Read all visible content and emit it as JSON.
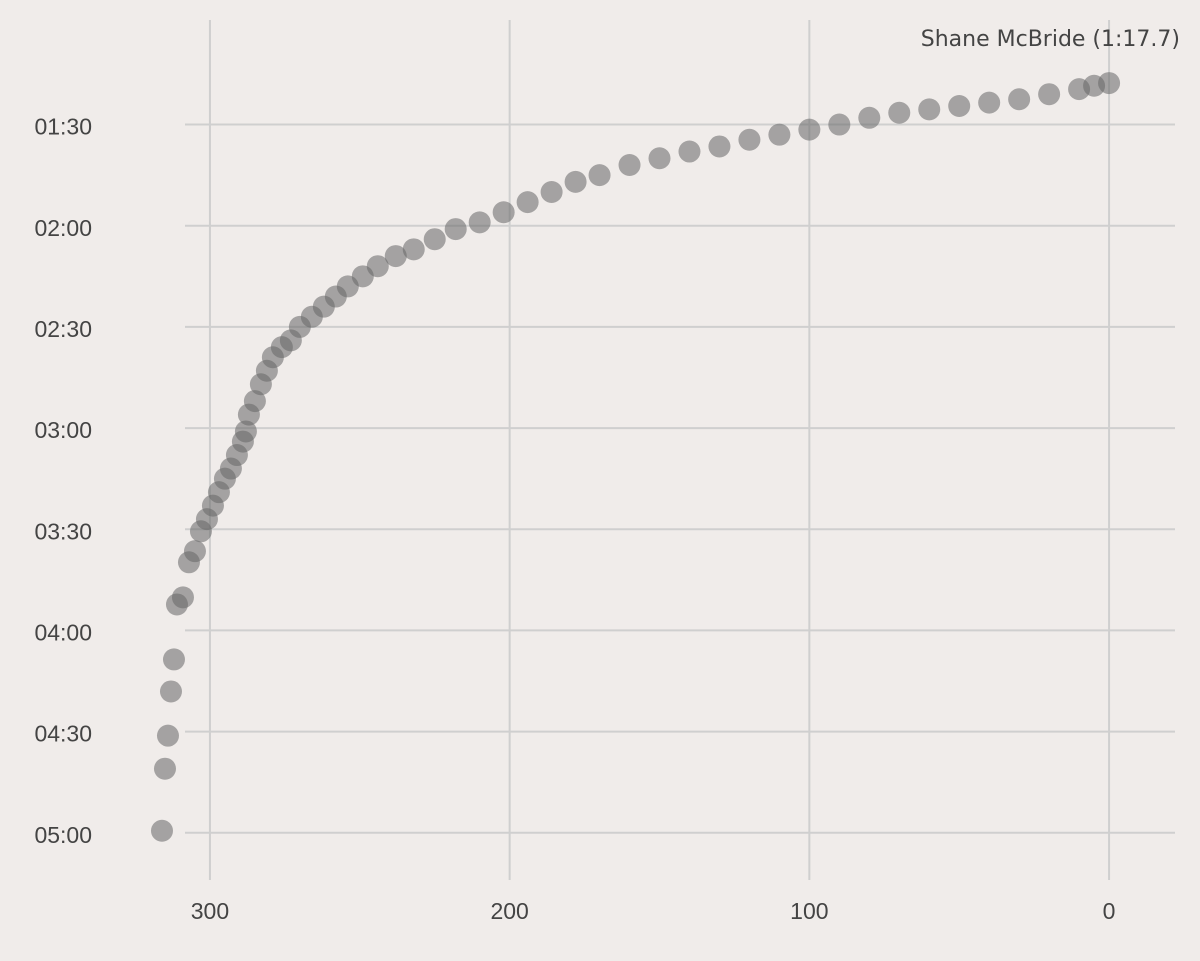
{
  "chart_data": {
    "type": "scatter",
    "annotation": "Shane McBride (1:17.7)",
    "color": "#666666",
    "x": [
      316,
      315,
      314,
      313,
      312,
      311,
      309,
      307,
      305,
      303,
      301,
      299,
      297,
      295,
      293,
      291,
      289,
      288,
      287,
      285,
      283,
      281,
      279,
      276,
      273,
      270,
      266,
      262,
      258,
      254,
      249,
      244,
      238,
      232,
      225,
      218,
      210,
      202,
      194,
      186,
      178,
      170,
      160,
      150,
      140,
      130,
      120,
      110,
      100,
      90,
      80,
      70,
      60,
      50,
      40,
      30,
      20,
      10,
      5,
      0
    ],
    "values": [
      299.4,
      281,
      271.2,
      258.1,
      248.6,
      232.3,
      230.2,
      219.8,
      216.5,
      210.6,
      207,
      203,
      199,
      195,
      192,
      188,
      184,
      181,
      176,
      172,
      167,
      163,
      159,
      156,
      154,
      150,
      147,
      144,
      141,
      138,
      135,
      132,
      129,
      127,
      124,
      121,
      119,
      116,
      113,
      110,
      107,
      105,
      102,
      100,
      98,
      96.5,
      94.5,
      93,
      91.5,
      90,
      88,
      86.5,
      85.5,
      84.5,
      83.5,
      82.5,
      81,
      79.5,
      78.5,
      77.7
    ],
    "xlim": [
      320,
      -22
    ],
    "ylim": [
      314,
      59
    ],
    "xticks": [
      300,
      200,
      100,
      0
    ],
    "yticks": [
      {
        "value": 90,
        "label": "01:30"
      },
      {
        "value": 120,
        "label": "02:00"
      },
      {
        "value": 150,
        "label": "02:30"
      },
      {
        "value": 180,
        "label": "03:00"
      },
      {
        "value": 210,
        "label": "03:30"
      },
      {
        "value": 240,
        "label": "04:00"
      },
      {
        "value": 270,
        "label": "04:30"
      },
      {
        "value": 300,
        "label": "05:00"
      }
    ],
    "grid": true
  }
}
